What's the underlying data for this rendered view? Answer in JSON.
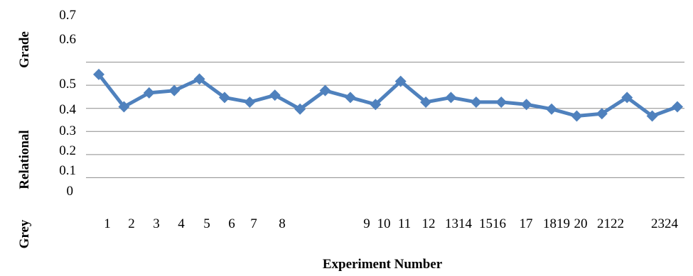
{
  "chart_data": {
    "type": "line",
    "xlabel": "Experiment Number",
    "ylabel_parts": [
      "Grey",
      "Relational",
      "Grade"
    ],
    "ylim": [
      0,
      0.7
    ],
    "yticks": [
      "0",
      "0.1",
      "0.2",
      "0.3",
      "0.4",
      "0.5",
      "0.6",
      "0.7"
    ],
    "x_tick_labels": [
      "1",
      "2",
      "3",
      "4",
      "5",
      "6",
      "7",
      "8",
      "9",
      "10",
      "11",
      "12",
      "1314",
      "1516",
      "17",
      "1819",
      "20",
      "2122",
      "2324"
    ],
    "grid": true,
    "series_color": "#4f81bd",
    "series": [
      {
        "values": [
          0.55,
          0.41,
          0.47,
          0.48,
          0.53,
          0.45,
          0.43,
          0.46,
          0.4,
          0.48,
          0.45,
          0.42,
          0.52,
          0.43,
          0.45,
          0.43,
          0.43,
          0.42,
          0.4,
          0.37,
          0.38,
          0.45,
          0.37,
          0.41
        ]
      }
    ]
  }
}
